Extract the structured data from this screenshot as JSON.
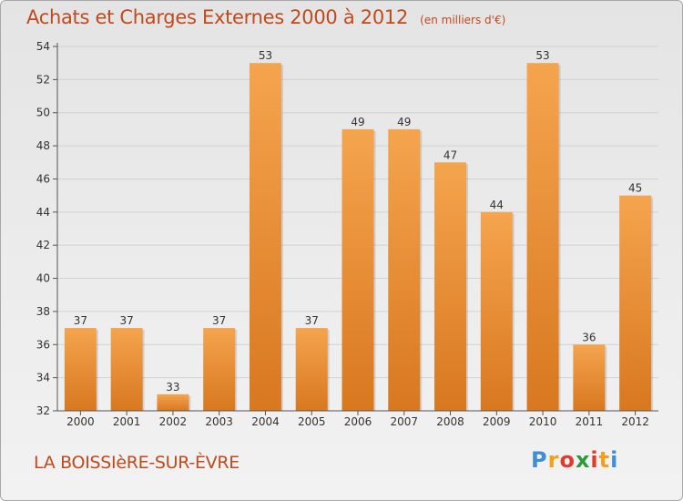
{
  "title": "Achats et Charges Externes 2000 à 2012",
  "unit": "(en milliers d'€)",
  "commune": "LA BOISSIèRE-SUR-ÈVRE",
  "logo": {
    "letters": [
      "P",
      "r",
      "o",
      "x",
      "i",
      "t",
      "i"
    ],
    "colors": [
      "#3f8fd6",
      "#f0a020",
      "#e03c2c",
      "#2f9a3a",
      "#e03c2c",
      "#f0a020",
      "#3f8fd6"
    ]
  },
  "colors": {
    "bar_top": "#f5a44e",
    "bar_bottom": "#d87820",
    "title": "#c04a1c"
  },
  "chart_data": {
    "type": "bar",
    "title": "Achats et Charges Externes 2000 à 2012",
    "categories": [
      "2000",
      "2001",
      "2002",
      "2003",
      "2004",
      "2005",
      "2006",
      "2007",
      "2008",
      "2009",
      "2010",
      "2011",
      "2012"
    ],
    "values": [
      37,
      37,
      33,
      37,
      53,
      37,
      49,
      49,
      47,
      44,
      53,
      36,
      45
    ],
    "ylim": [
      32,
      54
    ],
    "yticks": [
      32,
      34,
      36,
      38,
      40,
      42,
      44,
      46,
      48,
      50,
      52,
      54
    ],
    "grid": true,
    "xlabel": "",
    "ylabel": ""
  }
}
